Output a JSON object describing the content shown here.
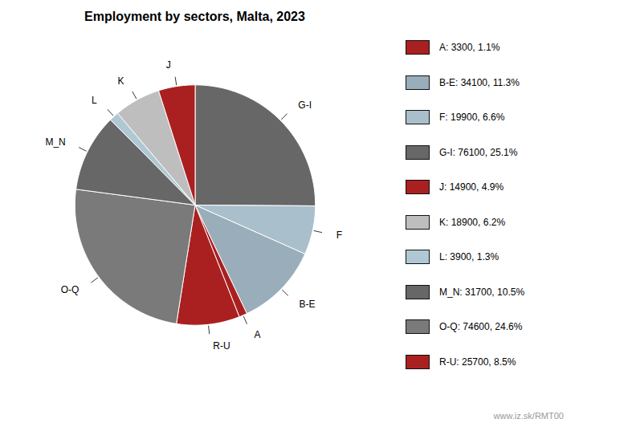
{
  "chart_data": {
    "type": "pie",
    "title": "Employment by sectors, Malta, 2023",
    "categories": [
      "G-I",
      "F",
      "B-E",
      "A",
      "R-U",
      "O-Q",
      "M_N",
      "L",
      "K",
      "J"
    ],
    "values": [
      76100,
      19900,
      34100,
      3300,
      25700,
      74600,
      31700,
      3900,
      18900,
      14900
    ],
    "colors": [
      "#676767",
      "#aabfcc",
      "#9aadba",
      "#aa2020",
      "#aa2020",
      "#7a7a7a",
      "#676767",
      "#b0c8d4",
      "#bebebe",
      "#aa2020"
    ],
    "legend": "right",
    "legend_entries": [
      {
        "label": "A: 3300, 1.1%",
        "color": "#aa2020"
      },
      {
        "label": "B-E: 34100, 11.3%",
        "color": "#9aadba"
      },
      {
        "label": "F: 19900, 6.6%",
        "color": "#aabfcc"
      },
      {
        "label": "G-I: 76100, 25.1%",
        "color": "#676767"
      },
      {
        "label": "J: 14900, 4.9%",
        "color": "#aa2020"
      },
      {
        "label": "K: 18900, 6.2%",
        "color": "#bebebe"
      },
      {
        "label": "L: 3900, 1.3%",
        "color": "#b0c8d4"
      },
      {
        "label": "M_N: 31700, 10.5%",
        "color": "#676767"
      },
      {
        "label": "O-Q: 74600, 24.6%",
        "color": "#7a7a7a"
      },
      {
        "label": "R-U: 25700, 8.5%",
        "color": "#aa2020"
      }
    ],
    "annotations": [
      "www.iz.sk/RMT00"
    ]
  }
}
